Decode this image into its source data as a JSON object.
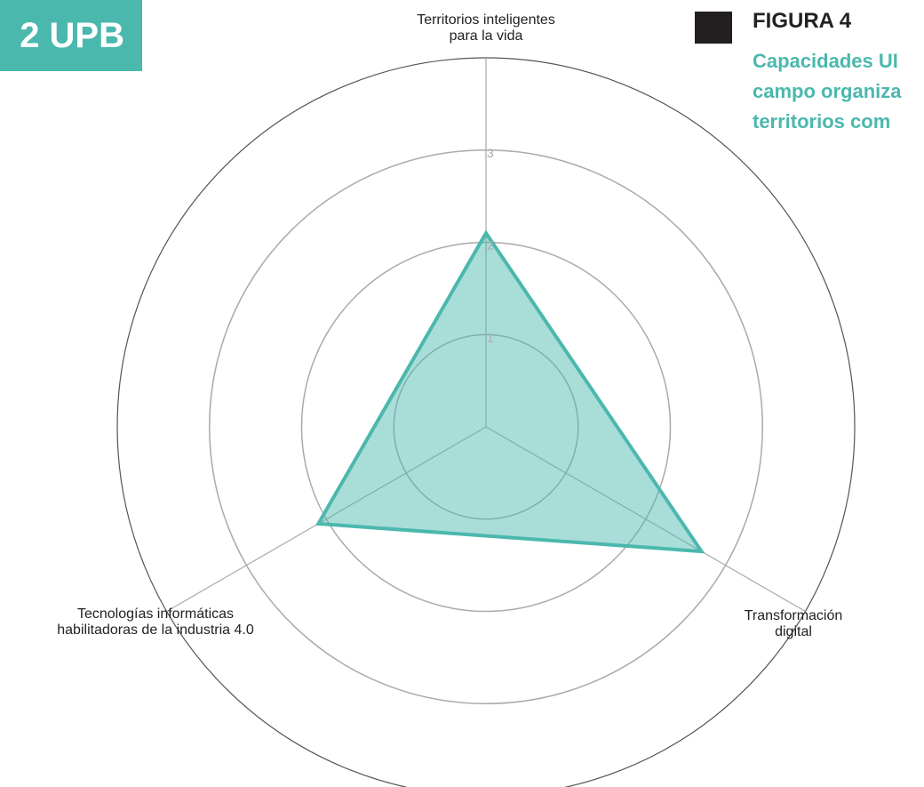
{
  "chart_data": {
    "type": "radar",
    "brand": "2 UPB",
    "figure_label": "FIGURA 4",
    "subtitle": "Capacidades UI\ncampo organiza\nterritorios com",
    "categories": [
      "Territorios inteligentes\npara la vida",
      "Transformación digital",
      "Tecnologías informáticas\nhabilitadoras de la industria 4.0"
    ],
    "values": [
      2.1,
      2.7,
      2.1
    ],
    "color": "#4bb8ad",
    "rlim": [
      0,
      4
    ],
    "rticks": [
      1,
      2,
      3
    ],
    "grid": true
  }
}
